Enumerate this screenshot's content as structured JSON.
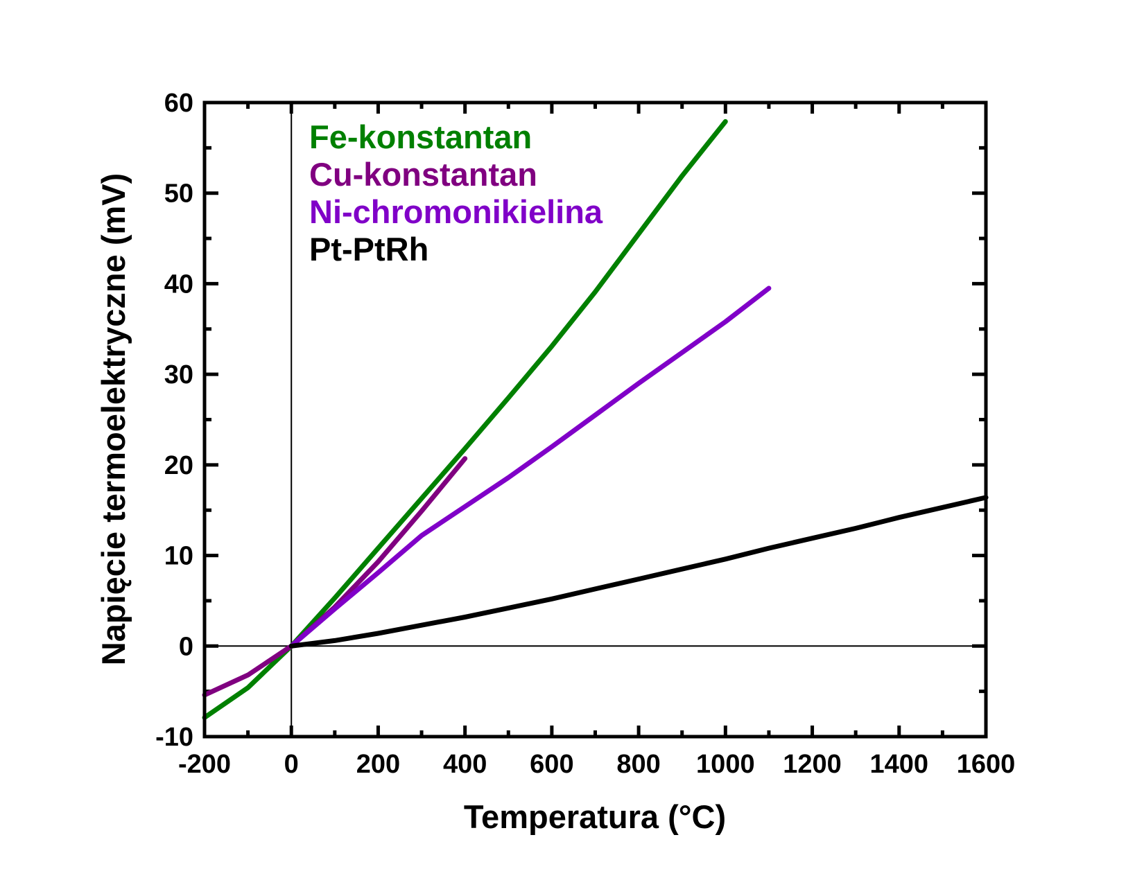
{
  "chart_data": {
    "type": "line",
    "title": "",
    "xlabel": "Temperatura (°C)",
    "ylabel": "Napięcie termoelektryczne (mV)",
    "xlim": [
      -200,
      1600
    ],
    "ylim": [
      -10,
      60
    ],
    "xticks": [
      -200,
      0,
      200,
      400,
      600,
      800,
      1000,
      1200,
      1400,
      1600
    ],
    "yticks": [
      -10,
      0,
      10,
      20,
      30,
      40,
      50,
      60
    ],
    "grid": false,
    "legend_position": "top-left",
    "series": [
      {
        "name": "Fe-konstantan",
        "color": "#008000",
        "x": [
          -200,
          -100,
          0,
          100,
          200,
          300,
          400,
          500,
          600,
          700,
          800,
          900,
          1000
        ],
        "y": [
          -7.9,
          -4.6,
          0,
          5.3,
          10.8,
          16.3,
          21.8,
          27.4,
          33.1,
          39.1,
          45.5,
          51.9,
          57.9
        ]
      },
      {
        "name": "Cu-konstantan",
        "color": "#800080",
        "x": [
          -200,
          -100,
          0,
          100,
          200,
          300,
          400
        ],
        "y": [
          -5.4,
          -3.2,
          0,
          4.3,
          9.3,
          14.9,
          20.7
        ]
      },
      {
        "name": "Ni-chromonikielina",
        "color": "#8000c8",
        "x": [
          0,
          100,
          200,
          300,
          400,
          500,
          600,
          700,
          800,
          900,
          1000,
          1100
        ],
        "y": [
          0,
          4.1,
          8.1,
          12.2,
          15.4,
          18.6,
          22.0,
          25.5,
          29.0,
          32.4,
          35.8,
          39.5
        ]
      },
      {
        "name": "Pt-PtRh",
        "color": "#000000",
        "x": [
          0,
          100,
          200,
          300,
          400,
          500,
          600,
          700,
          800,
          900,
          1000,
          1100,
          1200,
          1300,
          1400,
          1500,
          1600
        ],
        "y": [
          0,
          0.6,
          1.4,
          2.3,
          3.2,
          4.2,
          5.2,
          6.3,
          7.4,
          8.5,
          9.6,
          10.8,
          11.9,
          13.0,
          14.2,
          15.3,
          16.4
        ]
      }
    ]
  }
}
